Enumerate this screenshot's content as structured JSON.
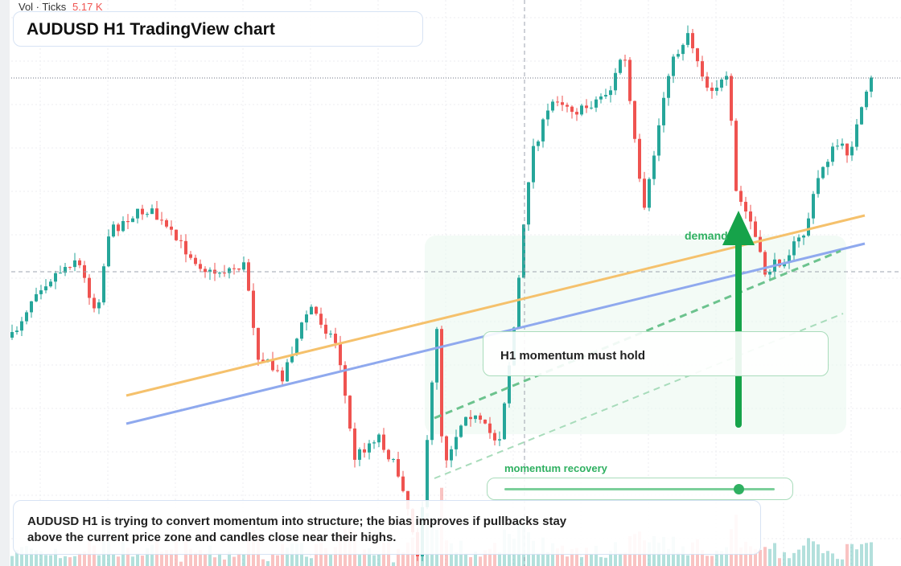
{
  "header": {
    "indicator": "Vol · Ticks",
    "volume": "5.17 K",
    "title": "AUDUSD H1 TradingView chart"
  },
  "annotations": {
    "zone": "demand",
    "callout": "H1 momentum must hold",
    "slider": "momentum recovery"
  },
  "note": "AUDUSD H1 is trying to convert momentum into structure; the bias improves if pullbacks stay above the current price zone and candles close near their highs."
}
